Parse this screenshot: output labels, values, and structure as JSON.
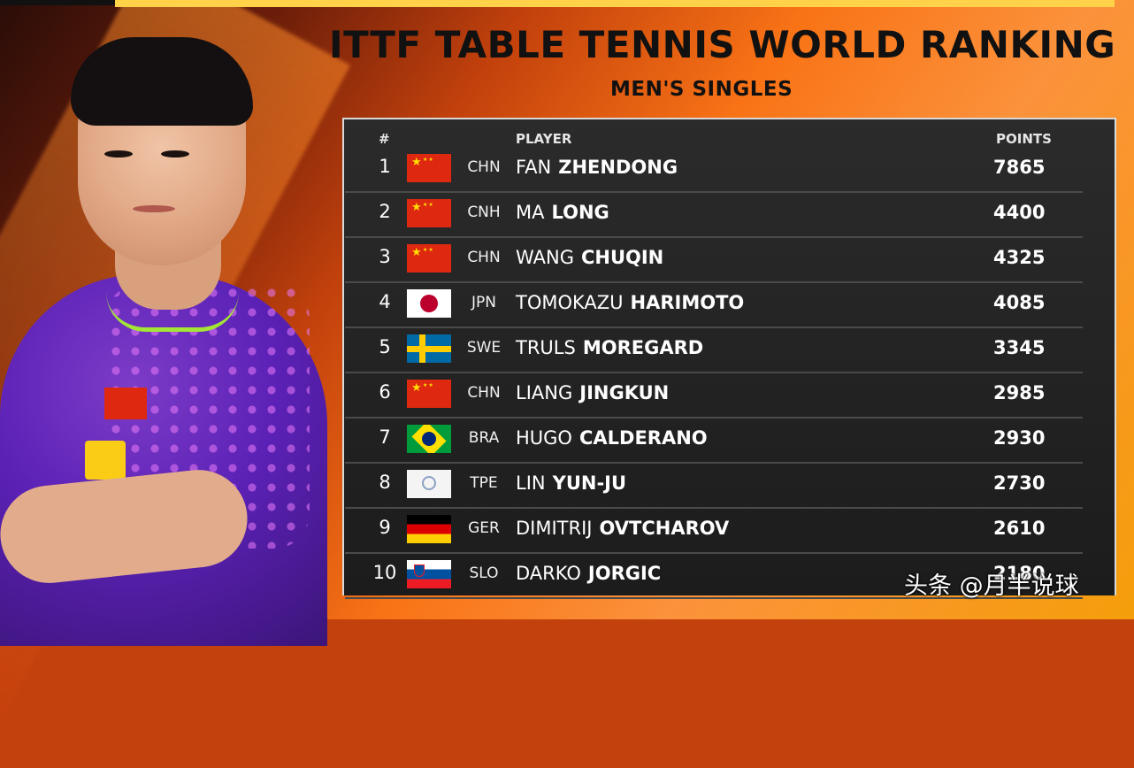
{
  "header": {
    "title": "ITTF TABLE TENNIS WORLD RANKING",
    "subtitle": "MEN'S SINGLES"
  },
  "table": {
    "columns": {
      "rank": "#",
      "player": "PLAYER",
      "points": "POINTS"
    },
    "rows": [
      {
        "rank": "1",
        "flag": "china-flag-icon",
        "code": "CHN",
        "first": "FAN",
        "last": "ZHENDONG",
        "points": "7865"
      },
      {
        "rank": "2",
        "flag": "china-flag-icon",
        "code": "CNH",
        "first": "MA",
        "last": "LONG",
        "points": "4400"
      },
      {
        "rank": "3",
        "flag": "china-flag-icon",
        "code": "CHN",
        "first": "WANG",
        "last": "CHUQIN",
        "points": "4325"
      },
      {
        "rank": "4",
        "flag": "japan-flag-icon",
        "code": "JPN",
        "first": "TOMOKAZU",
        "last": "HARIMOTO",
        "points": "4085"
      },
      {
        "rank": "5",
        "flag": "sweden-flag-icon",
        "code": "SWE",
        "first": "TRULS",
        "last": "MOREGARD",
        "points": "3345"
      },
      {
        "rank": "6",
        "flag": "china-flag-icon",
        "code": "CHN",
        "first": "LIANG",
        "last": "JINGKUN",
        "points": "2985"
      },
      {
        "rank": "7",
        "flag": "brazil-flag-icon",
        "code": "BRA",
        "first": "HUGO",
        "last": "CALDERANO",
        "points": "2930"
      },
      {
        "rank": "8",
        "flag": "tpe-flag-icon",
        "code": "TPE",
        "first": "LIN",
        "last": "YUN-JU",
        "points": "2730"
      },
      {
        "rank": "9",
        "flag": "germany-flag-icon",
        "code": "GER",
        "first": "DIMITRIJ",
        "last": "OVTCHAROV",
        "points": "2610"
      },
      {
        "rank": "10",
        "flag": "slovenia-flag-icon",
        "code": "SLO",
        "first": "DARKO",
        "last": "JORGIC",
        "points": "2180"
      }
    ]
  },
  "watermark": "头条 @月半说球",
  "colors": {
    "accent_orange": "#f97316",
    "accent_yellow": "#ffd24a",
    "panel_bg": "#1c1c1c",
    "jersey_purple": "#5b21b6"
  }
}
